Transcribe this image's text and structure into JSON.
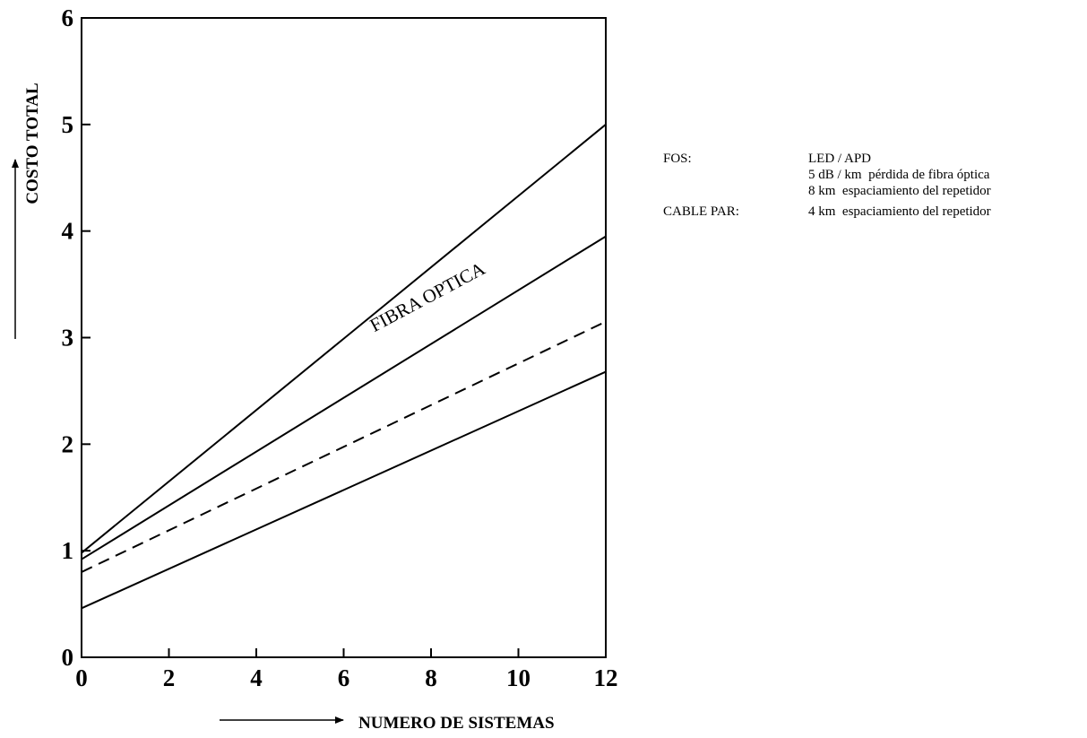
{
  "chart_data": {
    "type": "line",
    "xlabel": "NUMERO DE SISTEMAS",
    "ylabel": "COSTO TOTAL",
    "xlim": [
      0,
      12
    ],
    "ylim": [
      0,
      6
    ],
    "x_ticks": [
      "0",
      "2",
      "4",
      "6",
      "8",
      "10",
      "12"
    ],
    "y_ticks": [
      "0",
      "1",
      "2",
      "3",
      "4",
      "5",
      "6"
    ],
    "grid": false,
    "series": [
      {
        "x": [
          0,
          12
        ],
        "y": [
          0.98,
          5.0
        ],
        "style": "solid"
      },
      {
        "x": [
          0,
          12
        ],
        "y": [
          0.92,
          3.95
        ],
        "style": "solid"
      },
      {
        "x": [
          0,
          12
        ],
        "y": [
          0.8,
          3.15
        ],
        "style": "dashed"
      },
      {
        "x": [
          0,
          12
        ],
        "y": [
          0.46,
          2.68
        ],
        "style": "solid"
      }
    ],
    "annotations": [
      {
        "text": "FIBRA OPTICA",
        "x": 6.7,
        "y": 3.05
      }
    ],
    "color": "#000000"
  },
  "legend": {
    "rows": [
      {
        "key": "FOS:",
        "values": [
          "LED / APD",
          "5 dB / km  pérdida de fibra óptica",
          "8 km  espaciamiento del repetidor"
        ]
      },
      {
        "key": "CABLE PAR:",
        "values": [
          "4 km  espaciamiento del repetidor"
        ]
      }
    ]
  }
}
